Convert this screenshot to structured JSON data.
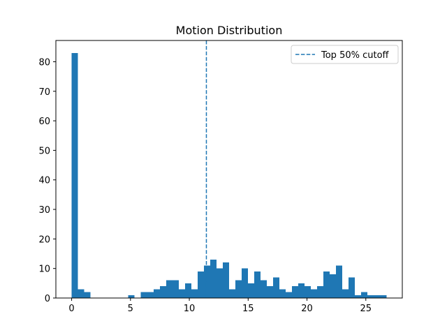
{
  "chart_data": {
    "type": "bar",
    "title": "Motion Distribution",
    "xlabel": "",
    "ylabel": "",
    "xlim": [
      -1.34,
      28.1
    ],
    "ylim": [
      0,
      87.2
    ],
    "xticks": [
      0,
      5,
      10,
      15,
      20,
      25
    ],
    "yticks": [
      0,
      10,
      20,
      30,
      40,
      50,
      60,
      70,
      80
    ],
    "bin_edges": [
      0,
      0.535,
      1.07,
      1.605,
      2.14,
      2.675,
      3.21,
      3.745,
      4.28,
      4.815,
      5.35,
      5.885,
      6.42,
      6.955,
      7.49,
      8.025,
      8.56,
      9.095,
      9.63,
      10.165,
      10.7,
      11.235,
      11.77,
      12.305,
      12.84,
      13.375,
      13.91,
      14.445,
      14.98,
      15.515,
      16.05,
      16.585,
      17.12,
      17.655,
      18.19,
      18.725,
      19.26,
      19.795,
      20.33,
      20.865,
      21.4,
      21.935,
      22.47,
      23.005,
      23.54,
      24.075,
      24.61,
      25.145,
      25.68,
      26.215,
      26.75
    ],
    "counts": [
      83,
      3,
      2,
      0,
      0,
      0,
      0,
      0,
      0,
      1,
      0,
      2,
      2,
      3,
      4,
      6,
      6,
      3,
      5,
      3,
      9,
      11,
      13,
      10,
      12,
      3,
      6,
      10,
      5,
      9,
      6,
      4,
      7,
      3,
      2,
      4,
      5,
      4,
      3,
      4,
      9,
      8,
      11,
      3,
      7,
      1,
      2,
      1,
      1,
      1
    ],
    "bar_color": "#1f77b4",
    "cutoff": {
      "x": 11.45,
      "label": "Top 50% cutoff",
      "color": "#1f77b4",
      "style": "dashed"
    },
    "legend_placement": "top-right",
    "grid": false
  }
}
